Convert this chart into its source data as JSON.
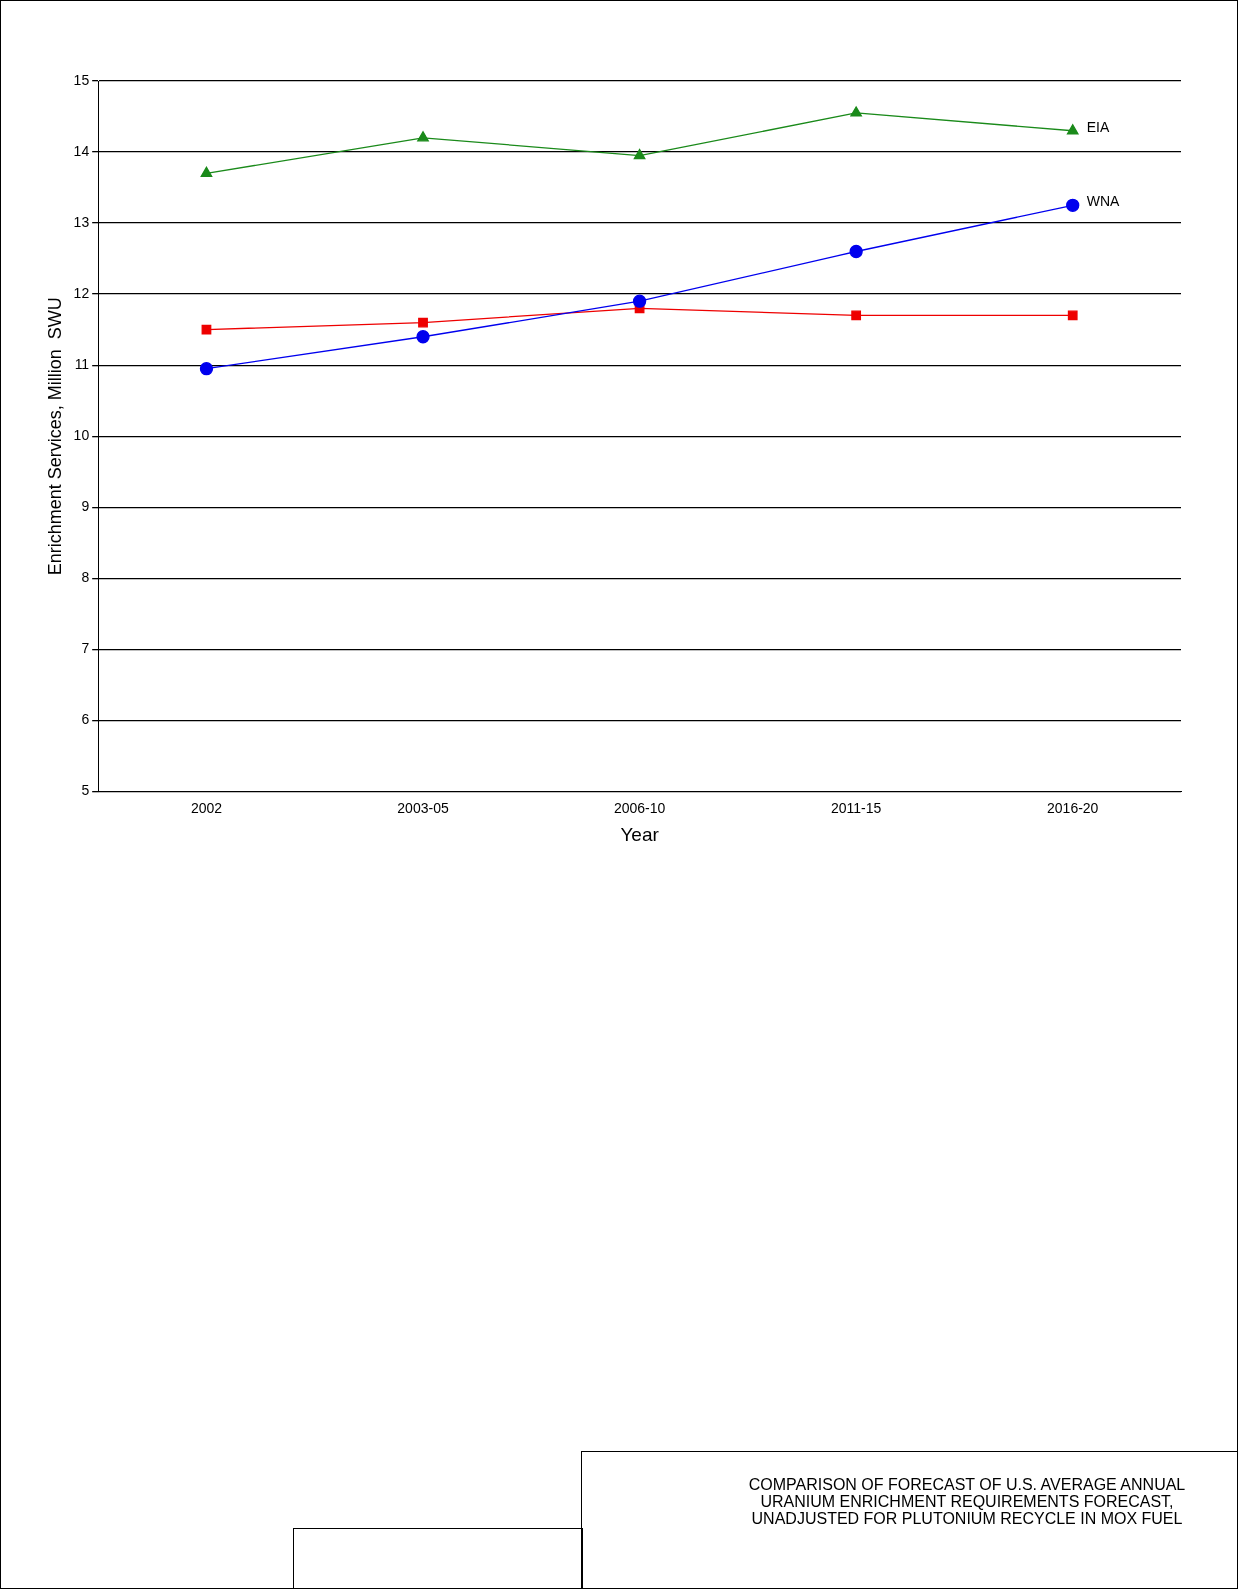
{
  "chart_data": {
    "type": "line",
    "title": "COMPARISON OF FORECAST OF U.S. AVERAGE ANNUAL URANIUM ENRICHMENT REQUIREMENTS FORECAST, UNADJUSTED FOR PLUTONIUM RECYCLE IN MOX FUEL",
    "xlabel": "Year",
    "ylabel": "Enrichment Services, Million  SWU",
    "categories": [
      "2002",
      "2003-05",
      "2006-10",
      "2011-15",
      "2016-20"
    ],
    "series": [
      {
        "name": "EIA",
        "color": "#1a8a1a",
        "marker": "triangle",
        "values": [
          13.7,
          14.2,
          13.95,
          14.55,
          14.3
        ]
      },
      {
        "name": "WNA",
        "color": "#0000ee",
        "marker": "circle",
        "values": [
          10.95,
          11.4,
          11.9,
          12.6,
          13.25
        ]
      },
      {
        "color": "#ee0000",
        "marker": "square",
        "values": [
          11.5,
          11.6,
          11.8,
          11.7,
          11.7
        ]
      }
    ],
    "ylim": [
      5,
      15
    ],
    "yticks": [
      5,
      6,
      7,
      8,
      9,
      10,
      11,
      12,
      13,
      14,
      15
    ],
    "grid": "y",
    "legend": false
  }
}
